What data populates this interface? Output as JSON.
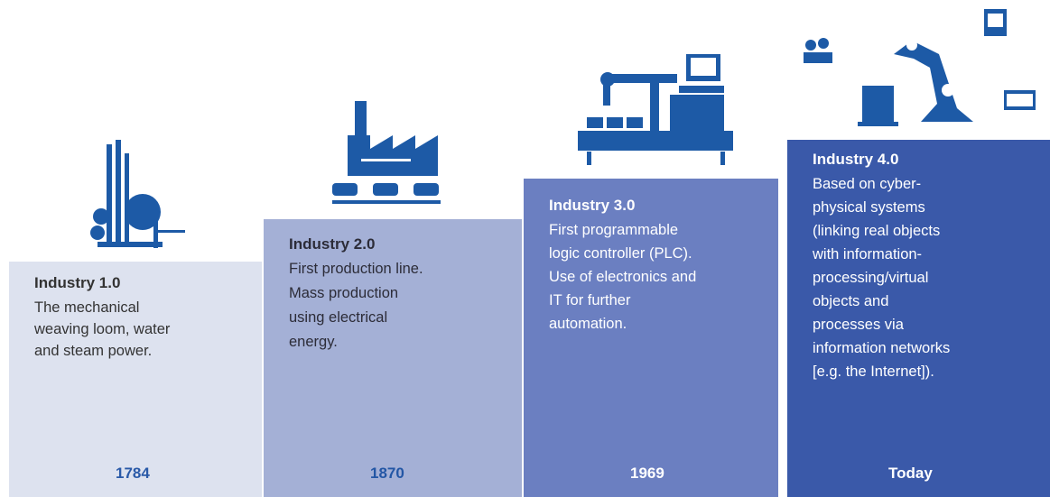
{
  "stages": [
    {
      "title": "Industry 1.0",
      "lines": [
        "The mechanical",
        "weaving loom, water",
        "and steam power."
      ],
      "year": "1784"
    },
    {
      "title": "Industry 2.0",
      "lines": [
        "First production line.",
        "Mass production",
        "using electrical",
        "energy."
      ],
      "year": "1870"
    },
    {
      "title": "Industry 3.0",
      "lines": [
        "First programmable",
        "logic controller (PLC).",
        "Use of electronics and",
        "IT for further",
        "automation."
      ],
      "year": "1969"
    },
    {
      "title": "Industry 4.0",
      "lines": [
        "Based on cyber-",
        "physical systems",
        "(linking real objects",
        "with information-",
        "processing/virtual",
        "objects and",
        "processes via",
        "information networks",
        "[e.g. the Internet])."
      ],
      "year": "Today"
    }
  ]
}
